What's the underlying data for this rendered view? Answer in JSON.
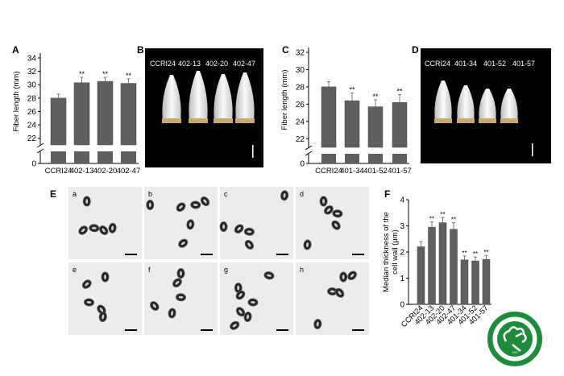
{
  "panel_labels": {
    "A": "A",
    "B": "B",
    "C": "C",
    "D": "D",
    "E": "E",
    "F": "F"
  },
  "photo_b": {
    "labels": [
      "CCRI24",
      "402-13",
      "402-20",
      "402-47"
    ]
  },
  "photo_d": {
    "labels": [
      "CCRI24",
      "401-34",
      "401-52",
      "401-57"
    ]
  },
  "micrographs": {
    "labels": [
      "a",
      "b",
      "c",
      "d",
      "e",
      "f",
      "g",
      "h"
    ]
  },
  "logo": {
    "text_top": "中国农业科学院棉花研究所",
    "text_bottom": "INSTITUTE OF COTTON RESEARCH OF CAAS",
    "year": "1957"
  },
  "chart_data": [
    {
      "id": "A",
      "type": "bar",
      "ylabel": "Fiber length (mm)",
      "xlabel": "",
      "categories": [
        "CCRI24",
        "402-13",
        "402-20",
        "402-47"
      ],
      "values": [
        28.0,
        30.3,
        30.5,
        30.2
      ],
      "errors": [
        0.6,
        0.8,
        0.6,
        0.7
      ],
      "significance": [
        "",
        "**",
        "**",
        "**"
      ],
      "yticks": [
        "0",
        "22",
        "24",
        "26",
        "28",
        "30",
        "32",
        "34"
      ],
      "ylim": [
        21,
        34
      ],
      "axis_break": true,
      "bar_color": "#5f5f5f"
    },
    {
      "id": "C",
      "type": "bar",
      "ylabel": "Fiber length (mm)",
      "xlabel": "",
      "categories": [
        "CCRI24",
        "401-34",
        "401-52",
        "401-57"
      ],
      "values": [
        28.0,
        26.4,
        25.7,
        26.2
      ],
      "errors": [
        0.6,
        0.9,
        0.8,
        0.9
      ],
      "significance": [
        "",
        "**",
        "**",
        "**"
      ],
      "yticks": [
        "0",
        "22",
        "24",
        "26",
        "28",
        "30",
        "32"
      ],
      "ylim": [
        21,
        32
      ],
      "axis_break": true,
      "bar_color": "#5f5f5f"
    },
    {
      "id": "F",
      "type": "bar",
      "ylabel": "Median thickness of the cell wall (μm)",
      "ylabel_lines": [
        "Median thickness of the",
        "cell wall (μm)"
      ],
      "xlabel": "",
      "categories": [
        "CCRI24",
        "402-13",
        "402-20",
        "402-47",
        "401-34",
        "401-52",
        "401-57"
      ],
      "values": [
        2.2,
        2.95,
        3.12,
        2.87,
        1.7,
        1.66,
        1.72
      ],
      "errors": [
        0.2,
        0.2,
        0.2,
        0.25,
        0.15,
        0.15,
        0.15
      ],
      "significance": [
        "",
        "**",
        "**",
        "**",
        "**",
        "**",
        "**"
      ],
      "yticks": [
        "0",
        "1",
        "2",
        "3",
        "4"
      ],
      "ylim": [
        0,
        4
      ],
      "axis_break": false,
      "bar_color": "#5f5f5f"
    }
  ]
}
